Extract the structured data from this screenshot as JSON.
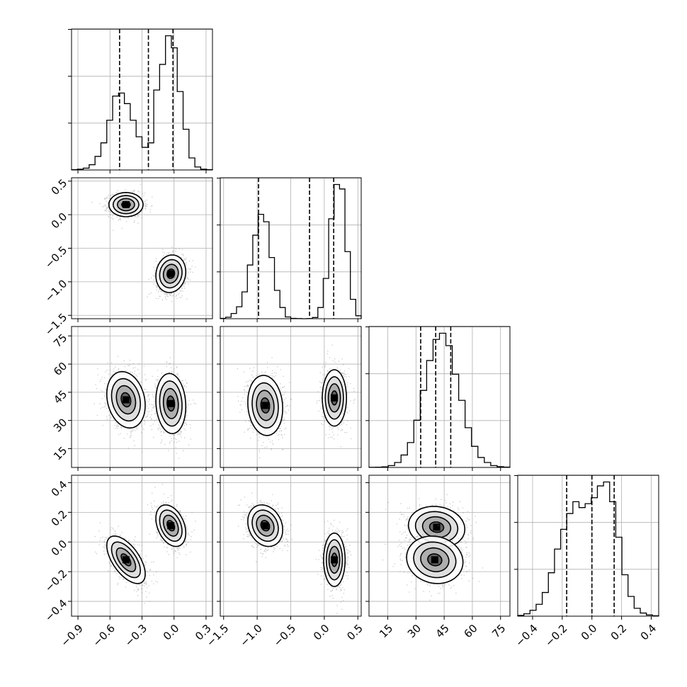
{
  "chart_data": {
    "type": "corner",
    "title": "",
    "n_params": 4,
    "params": [
      {
        "label": "",
        "range": [
          -0.96,
          0.36
        ],
        "ticks": [
          -0.9,
          -0.6,
          -0.3,
          0.0,
          0.3
        ],
        "tick_labels": [
          "−0.9",
          "−0.6",
          "−0.3",
          "0.0",
          "0.3"
        ]
      },
      {
        "label": "",
        "range": [
          -1.55,
          0.55
        ],
        "ticks": [
          -1.5,
          -1.0,
          -0.5,
          0.0,
          0.5
        ],
        "tick_labels": [
          "−1.5",
          "−1.0",
          "−0.5",
          "0.0",
          "0.5"
        ]
      },
      {
        "label": "",
        "range": [
          5,
          80
        ],
        "ticks": [
          15,
          30,
          45,
          60,
          75
        ],
        "tick_labels": [
          "15",
          "30",
          "45",
          "60",
          "75"
        ]
      },
      {
        "label": "",
        "range": [
          -0.5,
          0.45
        ],
        "ticks": [
          -0.4,
          -0.2,
          0.0,
          0.2,
          0.4
        ],
        "tick_labels": [
          "−0.4",
          "−0.2",
          "0.0",
          "0.2",
          "0.4"
        ]
      }
    ],
    "quantiles": [
      [
        -0.51,
        -0.24,
        -0.01
      ],
      [
        -0.98,
        -0.22,
        0.14
      ],
      [
        32.5,
        40.5,
        48.5
      ],
      [
        -0.17,
        0.0,
        0.15
      ]
    ],
    "histograms": [
      {
        "edges_range": [
          -0.96,
          0.36
        ],
        "counts": [
          2,
          5,
          12,
          35,
          90,
          180,
          330,
          490,
          510,
          440,
          330,
          220,
          150,
          180,
          530,
          700,
          890,
          810,
          520,
          270,
          80,
          20,
          5,
          2
        ]
      },
      {
        "edges_range": [
          -1.55,
          0.55
        ],
        "counts": [
          2,
          10,
          35,
          80,
          180,
          360,
          560,
          700,
          650,
          410,
          190,
          75,
          12,
          2,
          1,
          0,
          1,
          8,
          75,
          270,
          670,
          900,
          870,
          450,
          130,
          20
        ]
      },
      {
        "edges_range": [
          5,
          80
        ],
        "counts": [
          1,
          2,
          5,
          15,
          40,
          100,
          200,
          380,
          620,
          860,
          1030,
          1080,
          980,
          750,
          540,
          320,
          170,
          80,
          40,
          15,
          6,
          3
        ]
      },
      {
        "edges_range": [
          -0.5,
          0.45
        ],
        "counts": [
          2,
          6,
          15,
          30,
          60,
          110,
          170,
          220,
          260,
          290,
          275,
          285,
          300,
          330,
          340,
          290,
          200,
          105,
          50,
          20,
          8,
          3,
          1
        ]
      }
    ],
    "pairs": [
      {
        "x_param": 1,
        "y_param": 2,
        "clusters": [
          {
            "x": -0.45,
            "y": 0.15,
            "sx": 0.08,
            "sy": 0.09,
            "rho": 0.0
          },
          {
            "x": -0.03,
            "y": -0.88,
            "sx": 0.07,
            "sy": 0.14,
            "rho": 0.1
          }
        ]
      },
      {
        "x_param": 1,
        "y_param": 3,
        "clusters": [
          {
            "x": -0.45,
            "y": 41,
            "sx": 0.09,
            "sy": 7.5,
            "rho": -0.2
          },
          {
            "x": -0.03,
            "y": 39,
            "sx": 0.07,
            "sy": 8.0,
            "rho": -0.1
          }
        ]
      },
      {
        "x_param": 2,
        "y_param": 3,
        "clusters": [
          {
            "x": -0.88,
            "y": 38,
            "sx": 0.13,
            "sy": 8.0,
            "rho": -0.1
          },
          {
            "x": 0.15,
            "y": 42,
            "sx": 0.09,
            "sy": 7.5,
            "rho": 0.0
          }
        ]
      },
      {
        "x_param": 1,
        "y_param": 4,
        "clusters": [
          {
            "x": -0.45,
            "y": -0.12,
            "sx": 0.09,
            "sy": 0.08,
            "rho": -0.6
          },
          {
            "x": -0.03,
            "y": 0.11,
            "sx": 0.07,
            "sy": 0.07,
            "rho": -0.35
          }
        ]
      },
      {
        "x_param": 2,
        "y_param": 4,
        "clusters": [
          {
            "x": -0.88,
            "y": 0.11,
            "sx": 0.13,
            "sy": 0.07,
            "rho": -0.2
          },
          {
            "x": 0.15,
            "y": -0.12,
            "sx": 0.08,
            "sy": 0.09,
            "rho": 0.0
          }
        ]
      },
      {
        "x_param": 3,
        "y_param": 4,
        "clusters": [
          {
            "x": 41,
            "y": 0.1,
            "sx": 7.5,
            "sy": 0.07,
            "rho": -0.1
          },
          {
            "x": 40,
            "y": -0.12,
            "sx": 7.5,
            "sy": 0.08,
            "rho": -0.1
          }
        ]
      }
    ],
    "contour_levels_sigma": [
      0.5,
      1.0,
      1.5,
      2.0
    ],
    "grid": true,
    "line_color": "#000000",
    "grid_color": "#b0b0b0",
    "density_color": "#000000"
  }
}
